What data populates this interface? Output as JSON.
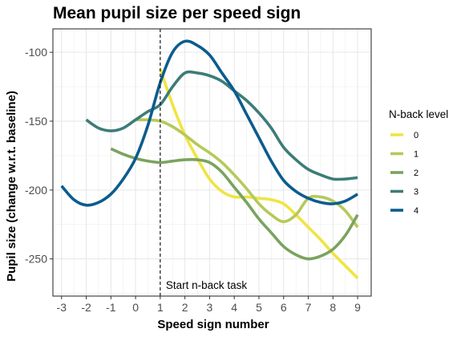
{
  "chart_data": {
    "type": "line",
    "title": "Mean pupil size per speed sign",
    "xlabel": "Speed sign number",
    "ylabel": "Pupil size (change w.r.t. baseline)",
    "x_ticks": [
      -3,
      -2,
      -1,
      0,
      1,
      2,
      3,
      4,
      5,
      6,
      7,
      8,
      9
    ],
    "y_ticks": [
      -100,
      -150,
      -200,
      -250
    ],
    "xlim": [
      -3.35,
      9.55
    ],
    "ylim": [
      -277,
      -83
    ],
    "grid": true,
    "legend": {
      "title": "N-back level",
      "position": "right"
    },
    "annotation": {
      "x": 1,
      "text": "Start n-back task"
    },
    "series": [
      {
        "name": "0",
        "color": "#f0e442",
        "x": [
          1.0,
          1.5,
          2.0,
          2.5,
          3.0,
          3.5,
          4.0,
          4.5,
          5.0,
          5.5,
          6.0,
          6.5,
          7.0,
          7.5,
          8.0,
          8.5,
          9.0
        ],
        "y": [
          -112,
          -138,
          -160,
          -177,
          -192,
          -201,
          -205,
          -205,
          -206,
          -207,
          -210,
          -218,
          -227,
          -236,
          -246,
          -255,
          -264
        ]
      },
      {
        "name": "1",
        "color": "#b5c95a",
        "x": [
          0.0,
          0.5,
          1.0,
          1.5,
          2.0,
          2.5,
          3.0,
          3.5,
          4.0,
          4.5,
          5.0,
          5.5,
          6.0,
          6.5,
          7.0,
          7.5,
          8.0,
          8.5,
          9.0
        ],
        "y": [
          -149,
          -149,
          -150,
          -154,
          -160,
          -167,
          -173,
          -180,
          -189,
          -199,
          -210,
          -218,
          -223,
          -218,
          -206,
          -205,
          -208,
          -215,
          -227
        ]
      },
      {
        "name": "2",
        "color": "#7aa35e",
        "x": [
          -1.0,
          -0.5,
          0.0,
          0.5,
          1.0,
          1.5,
          2.0,
          2.5,
          3.0,
          3.5,
          4.0,
          4.5,
          5.0,
          5.5,
          6.0,
          6.5,
          7.0,
          7.5,
          8.0,
          8.5,
          9.0
        ],
        "y": [
          -170,
          -174,
          -177,
          -179,
          -180,
          -179,
          -178,
          -178,
          -180,
          -187,
          -198,
          -209,
          -221,
          -231,
          -241,
          -247,
          -250,
          -248,
          -243,
          -233,
          -218
        ]
      },
      {
        "name": "3",
        "color": "#3d7c78",
        "x": [
          -2.0,
          -1.5,
          -1.0,
          -0.5,
          0.0,
          0.5,
          1.0,
          1.5,
          2.0,
          2.5,
          3.0,
          3.5,
          4.0,
          4.5,
          5.0,
          5.5,
          6.0,
          6.5,
          7.0,
          7.5,
          8.0,
          8.5,
          9.0
        ],
        "y": [
          -149,
          -155,
          -157,
          -155,
          -149,
          -143,
          -138,
          -125,
          -115,
          -115,
          -117,
          -121,
          -128,
          -135,
          -144,
          -155,
          -169,
          -178,
          -185,
          -189,
          -192,
          -192,
          -191
        ]
      },
      {
        "name": "4",
        "color": "#0b5c8e",
        "x": [
          -3.0,
          -2.5,
          -2.0,
          -1.5,
          -1.0,
          -0.5,
          0.0,
          0.5,
          1.0,
          1.5,
          2.0,
          2.5,
          3.0,
          3.5,
          4.0,
          4.5,
          5.0,
          5.5,
          6.0,
          6.5,
          7.0,
          7.5,
          8.0,
          8.5,
          9.0
        ],
        "y": [
          -197,
          -207,
          -211,
          -209,
          -203,
          -192,
          -177,
          -153,
          -122,
          -100,
          -92,
          -95,
          -102,
          -115,
          -128,
          -145,
          -162,
          -179,
          -193,
          -201,
          -206,
          -209,
          -210,
          -208,
          -203
        ]
      }
    ]
  }
}
